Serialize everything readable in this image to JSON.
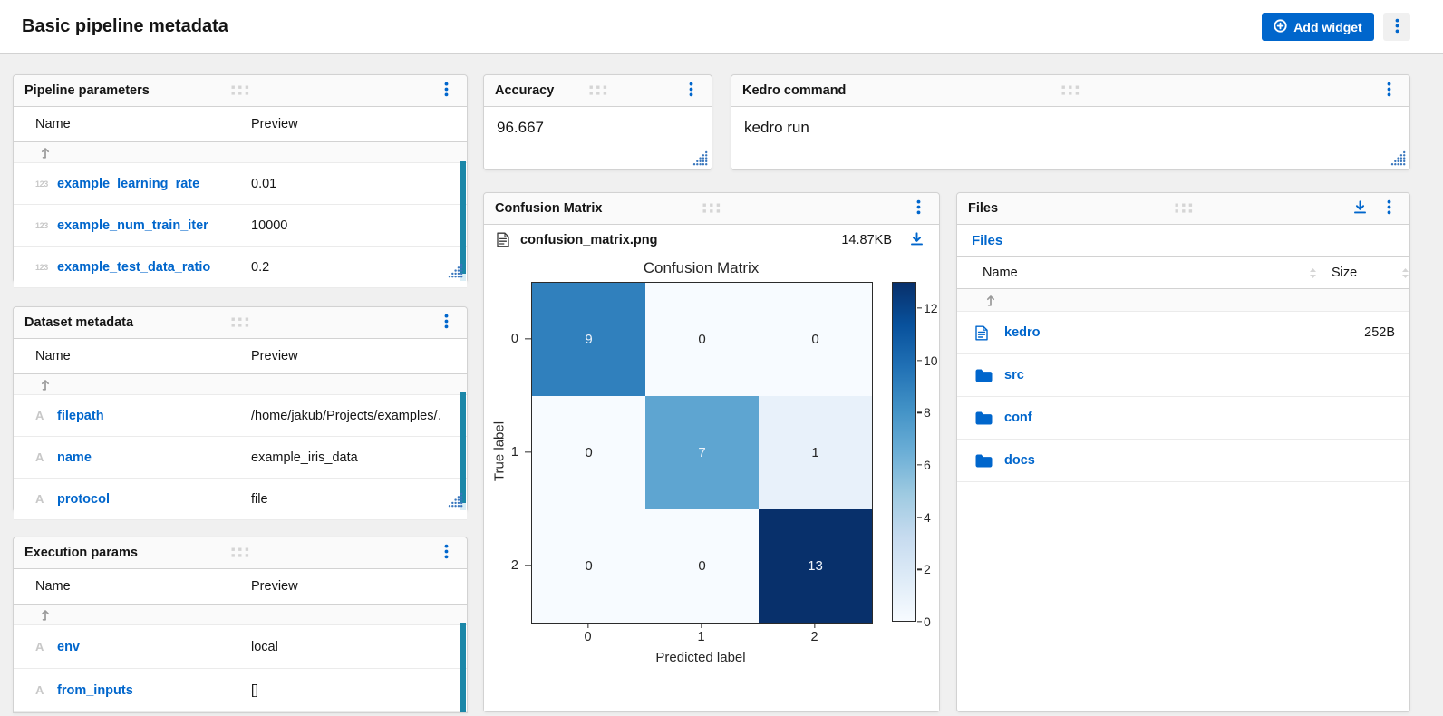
{
  "page": {
    "title": "Basic pipeline metadata"
  },
  "toolbar": {
    "add_widget_label": "Add widget"
  },
  "colors": {
    "accent": "#0066cc",
    "scrollbar_thumb": "#1b87a8",
    "widget_header_bg": "#fafafa",
    "page_bg": "#f0f0f0",
    "border": "#d2d2d2"
  },
  "widgets": {
    "pipeline_parameters": {
      "title": "Pipeline parameters",
      "columns": [
        "Name",
        "Preview"
      ],
      "rows": [
        {
          "type": "123",
          "name": "example_learning_rate",
          "preview": "0.01"
        },
        {
          "type": "123",
          "name": "example_num_train_iter",
          "preview": "10000"
        },
        {
          "type": "123",
          "name": "example_test_data_ratio",
          "preview": "0.2"
        }
      ]
    },
    "dataset_metadata": {
      "title": "Dataset metadata",
      "columns": [
        "Name",
        "Preview"
      ],
      "rows": [
        {
          "type": "A",
          "name": "filepath",
          "preview": "/home/jakub/Projects/examples/…"
        },
        {
          "type": "A",
          "name": "name",
          "preview": "example_iris_data"
        },
        {
          "type": "A",
          "name": "protocol",
          "preview": "file"
        }
      ]
    },
    "execution_params": {
      "title": "Execution params",
      "columns": [
        "Name",
        "Preview"
      ],
      "rows": [
        {
          "type": "A",
          "name": "env",
          "preview": "local"
        },
        {
          "type": "A",
          "name": "from_inputs",
          "preview": "[]"
        }
      ]
    },
    "accuracy": {
      "title": "Accuracy",
      "value": "96.667"
    },
    "kedro_command": {
      "title": "Kedro command",
      "value": "kedro run"
    },
    "confusion_matrix": {
      "title": "Confusion Matrix",
      "file": {
        "name": "confusion_matrix.png",
        "size": "14.87KB"
      }
    },
    "files": {
      "title": "Files",
      "breadcrumb": "Files",
      "columns": [
        "Name",
        "Size"
      ],
      "rows": [
        {
          "icon": "file",
          "name": "kedro",
          "size": "252B"
        },
        {
          "icon": "folder",
          "name": "src",
          "size": ""
        },
        {
          "icon": "folder",
          "name": "conf",
          "size": ""
        },
        {
          "icon": "folder",
          "name": "docs",
          "size": ""
        }
      ]
    }
  },
  "chart_data": {
    "type": "heatmap",
    "title": "Confusion Matrix",
    "xlabel": "Predicted label",
    "ylabel": "True label",
    "x_ticks": [
      "0",
      "1",
      "2"
    ],
    "y_ticks": [
      "0",
      "1",
      "2"
    ],
    "matrix": [
      [
        9,
        0,
        0
      ],
      [
        0,
        7,
        1
      ],
      [
        0,
        0,
        13
      ]
    ],
    "colormap": "Blues",
    "vmin": 0,
    "vmax": 13,
    "colorbar_ticks": [
      0,
      2,
      4,
      6,
      8,
      10,
      12
    ],
    "legend_position": "right-colorbar"
  }
}
